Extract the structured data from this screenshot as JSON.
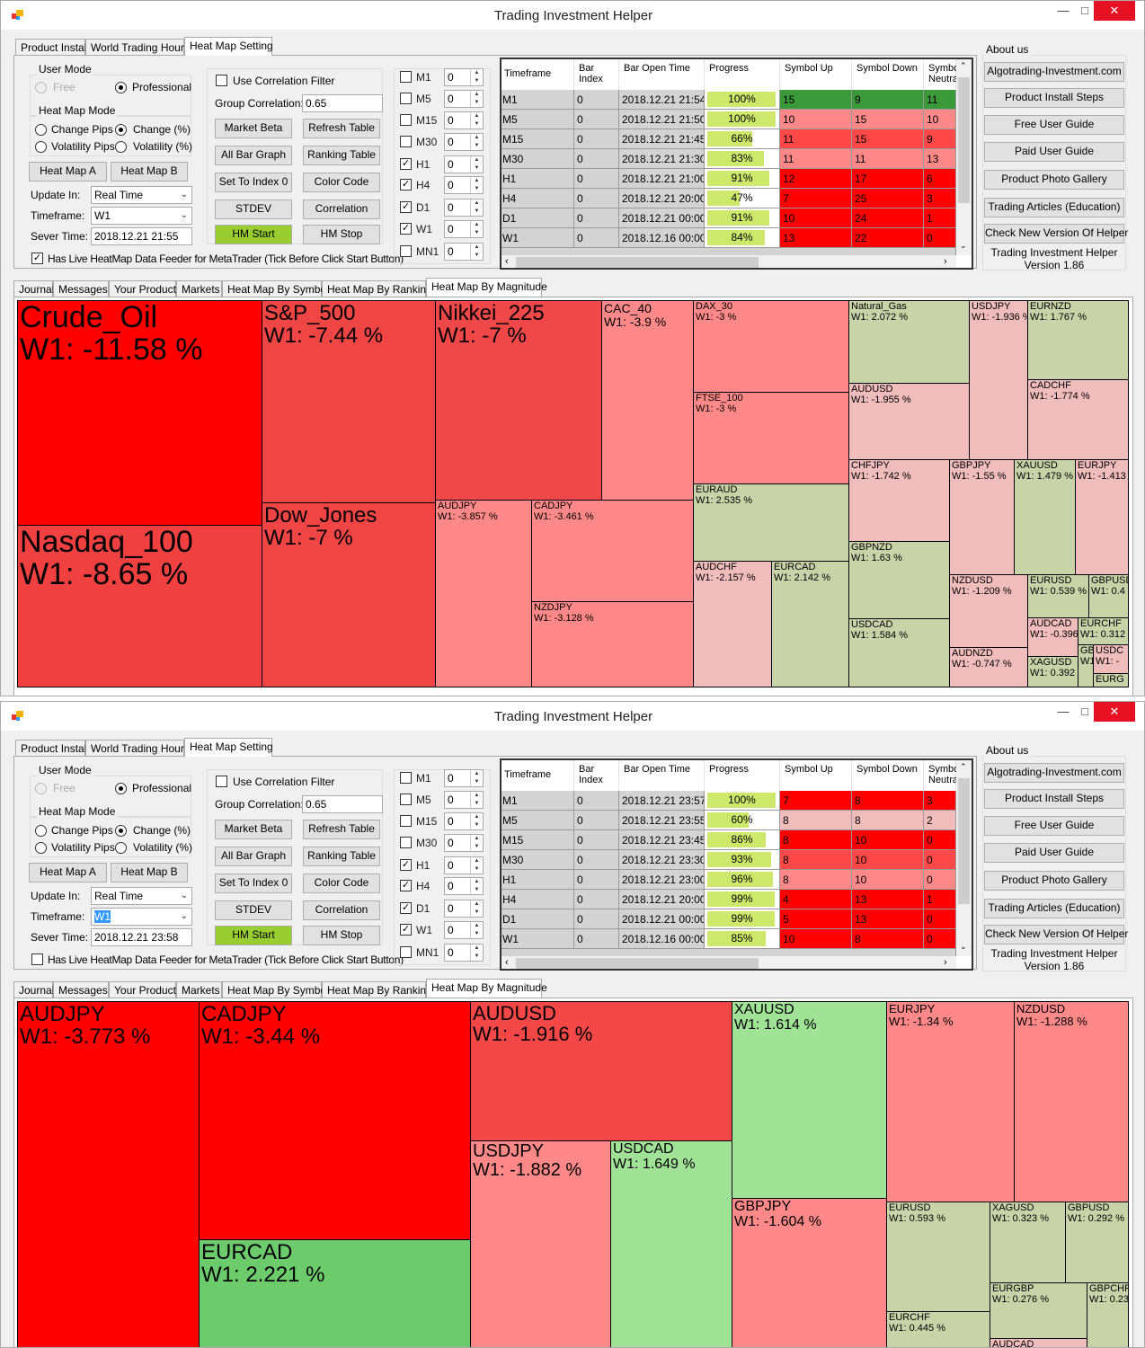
{
  "windows": [
    {
      "title": "Trading Investment Helper",
      "icon": "app-icon",
      "window_controls": [
        "minimize",
        "maximize",
        "close"
      ],
      "top_tabs": [
        "Product Install",
        "World Trading Hours",
        "Heat Map Setting"
      ],
      "active_top_tab": 2,
      "user_mode": {
        "label": "User Mode",
        "options": [
          "Free",
          "Professional"
        ],
        "selected": 1,
        "disabled": [
          0
        ]
      },
      "heat_map_mode": {
        "label": "Heat Map Mode",
        "options": [
          "Change Pips",
          "Change (%)",
          "Volatility Pips",
          "Volatility (%)"
        ],
        "selected": 1
      },
      "heat_map_buttons": [
        "Heat Map A",
        "Heat Map B"
      ],
      "update_in": {
        "label": "Update In:",
        "value": "Real Time"
      },
      "timeframe": {
        "label": "Timeframe:",
        "value": "W1",
        "highlighted": false
      },
      "server_time": {
        "label": "Sever Time:",
        "value": "2018.12.21 21:55"
      },
      "live_feeder": {
        "label": "Has Live HeatMap Data Feeder for MetaTrader (Tick Before Click Start Button)",
        "checked": true
      },
      "correlation": {
        "filter_label": "Use Correlation Filter",
        "filter_checked": false,
        "group_label": "Group Correlation:",
        "group_value": "0.65"
      },
      "action_buttons": [
        "Market Beta",
        "Refresh Table",
        "All Bar Graph",
        "Ranking Table",
        "Set To Index 0",
        "Color Code",
        "STDEV",
        "Correlation",
        "HM Start",
        "HM Stop"
      ],
      "active_button_color": "#9acd32",
      "tf_filters": [
        {
          "label": "M1",
          "checked": false,
          "value": "0"
        },
        {
          "label": "M5",
          "checked": false,
          "value": "0"
        },
        {
          "label": "M15",
          "checked": false,
          "value": "0"
        },
        {
          "label": "M30",
          "checked": false,
          "value": "0"
        },
        {
          "label": "H1",
          "checked": true,
          "value": "0"
        },
        {
          "label": "H4",
          "checked": true,
          "value": "0"
        },
        {
          "label": "D1",
          "checked": true,
          "value": "0"
        },
        {
          "label": "W1",
          "checked": true,
          "value": "0"
        },
        {
          "label": "MN1",
          "checked": false,
          "value": "0"
        }
      ],
      "table": {
        "columns": [
          "Timeframe",
          "Bar Index",
          "Bar Open Time",
          "Progress",
          "Symbol Up",
          "Symbol Down",
          "Symbol Neutral"
        ],
        "rows": [
          {
            "tf": "M1",
            "index": "0",
            "time": "2018.12.21 21:54",
            "progress": 100,
            "up": "15",
            "down": "9",
            "neutral": "11",
            "color": "#3a9a3a"
          },
          {
            "tf": "M5",
            "index": "0",
            "time": "2018.12.21 21:50",
            "progress": 100,
            "up": "10",
            "down": "15",
            "neutral": "10",
            "color": "#ff8888"
          },
          {
            "tf": "M15",
            "index": "0",
            "time": "2018.12.21 21:45",
            "progress": 66,
            "up": "11",
            "down": "15",
            "neutral": "9",
            "color": "#ff4848"
          },
          {
            "tf": "M30",
            "index": "0",
            "time": "2018.12.21 21:30",
            "progress": 83,
            "up": "11",
            "down": "11",
            "neutral": "13",
            "color": "#ff8888"
          },
          {
            "tf": "H1",
            "index": "0",
            "time": "2018.12.21 21:00",
            "progress": 91,
            "up": "12",
            "down": "17",
            "neutral": "6",
            "color": "#ff0000"
          },
          {
            "tf": "H4",
            "index": "0",
            "time": "2018.12.21 20:00",
            "progress": 47,
            "up": "7",
            "down": "25",
            "neutral": "3",
            "color": "#ff0000"
          },
          {
            "tf": "D1",
            "index": "0",
            "time": "2018.12.21 00:00",
            "progress": 91,
            "up": "10",
            "down": "24",
            "neutral": "1",
            "color": "#ff0000"
          },
          {
            "tf": "W1",
            "index": "0",
            "time": "2018.12.16 00:00",
            "progress": 84,
            "up": "13",
            "down": "22",
            "neutral": "0",
            "color": "#ff0000"
          }
        ]
      },
      "about": {
        "label": "About us",
        "buttons": [
          "Algotrading-Investment.com",
          "Product Install Steps",
          "Free User Guide",
          "Paid User Guide",
          "Product Photo Gallery",
          "Trading Articles (Education)",
          "Check New Version Of Helper"
        ],
        "footer": [
          "Trading Investment Helper",
          "Version 1.86"
        ]
      },
      "bottom_tabs": [
        "Journal",
        "Messages",
        "Your Product",
        "Markets",
        "Heat Map By Symbol",
        "Heat Map By Ranking",
        "Heat Map By Magnitude"
      ],
      "active_bottom_tab": 6,
      "heatmap": [
        {
          "symbol": "Crude_Oil",
          "label": "W1: -11.58 %",
          "color": "#ff0000"
        },
        {
          "symbol": "Nasdaq_100",
          "label": "W1: -8.65 %",
          "color": "#f04040"
        },
        {
          "symbol": "S&P_500",
          "label": "W1: -7.44 %",
          "color": "#f04545"
        },
        {
          "symbol": "Dow_Jones",
          "label": "W1: -7 %",
          "color": "#f04545"
        },
        {
          "symbol": "Nikkei_225",
          "label": "W1: -7 %",
          "color": "#f04848"
        },
        {
          "symbol": "CAC_40",
          "label": "W1: -3.9 %",
          "color": "#ff8888"
        },
        {
          "symbol": "AUDJPY",
          "label": "W1: -3.857 %",
          "color": "#ff8888"
        },
        {
          "symbol": "CADJPY",
          "label": "W1: -3.461 %",
          "color": "#ff8888"
        },
        {
          "symbol": "NZDJPY",
          "label": "W1: -3.128 %",
          "color": "#ff8888"
        },
        {
          "symbol": "DAX_30",
          "label": "W1: -3 %",
          "color": "#ff8888"
        },
        {
          "symbol": "FTSE_100",
          "label": "W1: -3 %",
          "color": "#ff8888"
        },
        {
          "symbol": "EURAUD",
          "label": "W1: 2.535 %",
          "color": "#c8d3a8"
        },
        {
          "symbol": "AUDCHF",
          "label": "W1: -2.157 %",
          "color": "#f0bcbc"
        },
        {
          "symbol": "EURCAD",
          "label": "W1: 2.142 %",
          "color": "#c8d3a8"
        },
        {
          "symbol": "Natural_Gas",
          "label": "W1: 2.072 %",
          "color": "#c8d3a8"
        },
        {
          "symbol": "AUDUSD",
          "label": "W1: -1.955 %",
          "color": "#f0bcbc"
        },
        {
          "symbol": "USDJPY",
          "label": "W1: -1.936 %",
          "color": "#f0bcbc"
        },
        {
          "symbol": "EURNZD",
          "label": "W1: 1.767 %",
          "color": "#c8d3a8"
        },
        {
          "symbol": "CADCHF",
          "label": "W1: -1.774 %",
          "color": "#f0bcbc"
        },
        {
          "symbol": "CHFJPY",
          "label": "W1: -1.742 %",
          "color": "#f0bcbc"
        },
        {
          "symbol": "GBPNZD",
          "label": "W1: 1.63 %",
          "color": "#c8d3a8"
        },
        {
          "symbol": "USDCAD",
          "label": "W1: 1.584 %",
          "color": "#c8d3a8"
        },
        {
          "symbol": "GBPJPY",
          "label": "W1: -1.55 %",
          "color": "#f0bcbc"
        },
        {
          "symbol": "XAUUSD",
          "label": "W1: 1.479 %",
          "color": "#c8d3a8"
        },
        {
          "symbol": "EURJPY",
          "label": "W1: -1.413",
          "color": "#f0bcbc"
        },
        {
          "symbol": "NZDUSD",
          "label": "W1: -1.209 %",
          "color": "#f0bcbc"
        },
        {
          "symbol": "AUDNZD",
          "label": "W1: -0.747 %",
          "color": "#f0bcbc"
        },
        {
          "symbol": "EURUSD",
          "label": "W1: 0.539 %",
          "color": "#c8d3a8"
        },
        {
          "symbol": "GBPUSD",
          "label": "W1: 0.4",
          "color": "#c8d3a8"
        },
        {
          "symbol": "AUDCAD",
          "label": "W1: -0.396",
          "color": "#f0bcbc"
        },
        {
          "symbol": "XAGUSD",
          "label": "W1: 0.392",
          "color": "#c8d3a8"
        },
        {
          "symbol": "EURCHF",
          "label": "W1: 0.312",
          "color": "#c8d3a8"
        },
        {
          "symbol": "GBP",
          "label": "W1:",
          "color": "#c8d3a8"
        },
        {
          "symbol": "USDC",
          "label": "W1: -",
          "color": "#f0bcbc"
        },
        {
          "symbol": "EURG",
          "label": "",
          "color": "#c8d3a8"
        }
      ]
    },
    {
      "title": "Trading Investment Helper",
      "icon": "app-icon",
      "window_controls": [
        "minimize",
        "maximize",
        "close"
      ],
      "top_tabs": [
        "Product Install",
        "World Trading Hours",
        "Heat Map Setting"
      ],
      "active_top_tab": 2,
      "user_mode": {
        "label": "User Mode",
        "options": [
          "Free",
          "Professional"
        ],
        "selected": 1,
        "disabled": [
          0
        ]
      },
      "heat_map_mode": {
        "label": "Heat Map Mode",
        "options": [
          "Change Pips",
          "Change (%)",
          "Volatility Pips",
          "Volatility (%)"
        ],
        "selected": 1
      },
      "heat_map_buttons": [
        "Heat Map A",
        "Heat Map B"
      ],
      "update_in": {
        "label": "Update In:",
        "value": "Real Time"
      },
      "timeframe": {
        "label": "Timeframe:",
        "value": "W1",
        "highlighted": true
      },
      "server_time": {
        "label": "Sever Time:",
        "value": "2018.12.21 23:58"
      },
      "live_feeder": {
        "label": "Has Live HeatMap Data Feeder for MetaTrader (Tick Before Click Start Button)",
        "checked": false
      },
      "correlation": {
        "filter_label": "Use Correlation Filter",
        "filter_checked": false,
        "group_label": "Group Correlation:",
        "group_value": "0.65"
      },
      "action_buttons": [
        "Market Beta",
        "Refresh Table",
        "All Bar Graph",
        "Ranking Table",
        "Set To Index 0",
        "Color Code",
        "STDEV",
        "Correlation",
        "HM Start",
        "HM Stop"
      ],
      "active_button_color": "#9acd32",
      "tf_filters": [
        {
          "label": "M1",
          "checked": false,
          "value": "0"
        },
        {
          "label": "M5",
          "checked": false,
          "value": "0"
        },
        {
          "label": "M15",
          "checked": false,
          "value": "0"
        },
        {
          "label": "M30",
          "checked": false,
          "value": "0"
        },
        {
          "label": "H1",
          "checked": true,
          "value": "0"
        },
        {
          "label": "H4",
          "checked": true,
          "value": "0"
        },
        {
          "label": "D1",
          "checked": true,
          "value": "0"
        },
        {
          "label": "W1",
          "checked": true,
          "value": "0"
        },
        {
          "label": "MN1",
          "checked": false,
          "value": "0"
        }
      ],
      "table": {
        "columns": [
          "Timeframe",
          "Bar Index",
          "Bar Open Time",
          "Progress",
          "Symbol Up",
          "Symbol Down",
          "Symbol Neutral"
        ],
        "rows": [
          {
            "tf": "M1",
            "index": "0",
            "time": "2018.12.21 23:57",
            "progress": 100,
            "up": "7",
            "down": "8",
            "neutral": "3",
            "color": "#ff0000"
          },
          {
            "tf": "M5",
            "index": "0",
            "time": "2018.12.21 23:55",
            "progress": 60,
            "up": "8",
            "down": "8",
            "neutral": "2",
            "color": "#f0bcbc"
          },
          {
            "tf": "M15",
            "index": "0",
            "time": "2018.12.21 23:45",
            "progress": 86,
            "up": "8",
            "down": "10",
            "neutral": "0",
            "color": "#ff0000"
          },
          {
            "tf": "M30",
            "index": "0",
            "time": "2018.12.21 23:30",
            "progress": 93,
            "up": "8",
            "down": "10",
            "neutral": "0",
            "color": "#ff4848"
          },
          {
            "tf": "H1",
            "index": "0",
            "time": "2018.12.21 23:00",
            "progress": 96,
            "up": "8",
            "down": "10",
            "neutral": "0",
            "color": "#ff8888"
          },
          {
            "tf": "H4",
            "index": "0",
            "time": "2018.12.21 20:00",
            "progress": 99,
            "up": "4",
            "down": "13",
            "neutral": "1",
            "color": "#ff0000"
          },
          {
            "tf": "D1",
            "index": "0",
            "time": "2018.12.21 00:00",
            "progress": 99,
            "up": "5",
            "down": "13",
            "neutral": "0",
            "color": "#ff0000"
          },
          {
            "tf": "W1",
            "index": "0",
            "time": "2018.12.16 00:00",
            "progress": 85,
            "up": "10",
            "down": "8",
            "neutral": "0",
            "color": "#ff0000"
          }
        ]
      },
      "about": {
        "label": "About us",
        "buttons": [
          "Algotrading-Investment.com",
          "Product Install Steps",
          "Free User Guide",
          "Paid User Guide",
          "Product Photo Gallery",
          "Trading Articles (Education)",
          "Check New Version Of Helper"
        ],
        "footer": [
          "Trading Investment Helper",
          "Version 1.86"
        ]
      },
      "bottom_tabs": [
        "Journal",
        "Messages",
        "Your Product",
        "Markets",
        "Heat Map By Symbol",
        "Heat Map By Ranking",
        "Heat Map By Magnitude"
      ],
      "active_bottom_tab": 6,
      "heatmap": [
        {
          "symbol": "AUDJPY",
          "label": "W1: -3.773 %",
          "color": "#ff0000"
        },
        {
          "symbol": "CADJPY",
          "label": "W1: -3.44 %",
          "color": "#ff0000"
        },
        {
          "symbol": "EURCAD",
          "label": "W1: 2.221 %",
          "color": "#6ccc6c"
        },
        {
          "symbol": "AUDUSD",
          "label": "W1: -1.916 %",
          "color": "#f44848"
        },
        {
          "symbol": "USDJPY",
          "label": "W1: -1.882 %",
          "color": "#ff8888"
        },
        {
          "symbol": "USDCAD",
          "label": "W1: 1.649 %",
          "color": "#a0e396"
        },
        {
          "symbol": "XAUUSD",
          "label": "W1: 1.614 %",
          "color": "#a0e396"
        },
        {
          "symbol": "GBPJPY",
          "label": "W1: -1.604 %",
          "color": "#ff8888"
        },
        {
          "symbol": "EURJPY",
          "label": "W1: -1.34 %",
          "color": "#ff8888"
        },
        {
          "symbol": "NZDUSD",
          "label": "W1: -1.288 %",
          "color": "#ff8888"
        },
        {
          "symbol": "EURUSD",
          "label": "W1: 0.593 %",
          "color": "#c8d3a8"
        },
        {
          "symbol": "EURCHF",
          "label": "W1: 0.445 %",
          "color": "#c8d3a8"
        },
        {
          "symbol": "XAGUSD",
          "label": "W1: 0.323 %",
          "color": "#c8d3a8"
        },
        {
          "symbol": "GBPUSD",
          "label": "W1: 0.292 %",
          "color": "#c8d3a8"
        },
        {
          "symbol": "EURGBP",
          "label": "W1: 0.276 %",
          "color": "#c8d3a8"
        },
        {
          "symbol": "GBPCHF",
          "label": "W1: 0.23",
          "color": "#c8d3a8"
        },
        {
          "symbol": "AUDCAD",
          "label": "",
          "color": "#f0bcbc"
        }
      ]
    }
  ]
}
